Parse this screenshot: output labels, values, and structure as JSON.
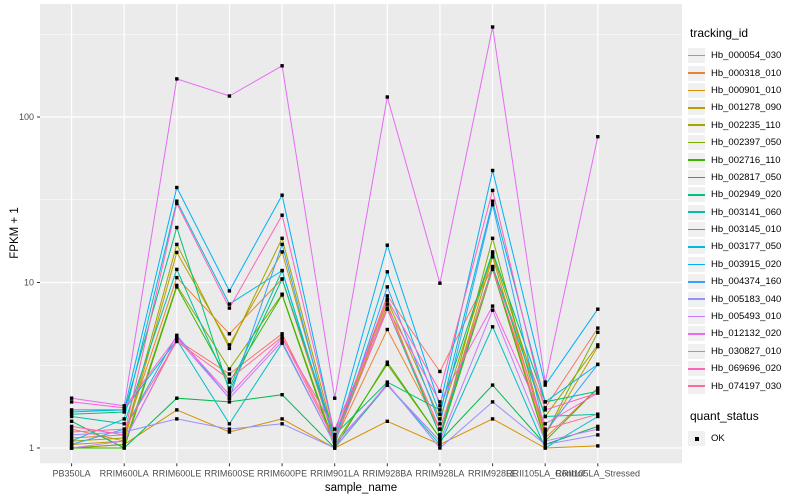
{
  "figure": {
    "panel_bg": "#EBEBEB",
    "grid_color": "#FFFFFF",
    "key_bg": "#F0F0F0",
    "marker_color": "#000000",
    "axis_text_color": "#4D4D4D",
    "tick_color": "#333333"
  },
  "legend": {
    "series_title": "tracking_id",
    "status_title": "quant_status",
    "status_items": [
      {
        "label": "OK",
        "marker": "black-square"
      }
    ]
  },
  "chart_data": {
    "type": "line",
    "title": "",
    "xlabel": "sample_name",
    "ylabel": "FPKM + 1",
    "y_scale": "log10",
    "y_ticks": [
      1,
      10,
      100
    ],
    "ylim": [
      0.81,
      480
    ],
    "grid": true,
    "legend_position": "right",
    "marker": "black-square",
    "categories": [
      "PB350LA",
      "RRIM600LA",
      "RRIM600LE",
      "RRIM600SE",
      "RRIM600PE",
      "RRIM901LA",
      "RRIM928BA",
      "RRIM928LA",
      "RRIM928LE",
      "RRII105LA_Control",
      "RRII105LA_Stressed"
    ],
    "series": [
      {
        "name": "Hb_000054_030",
        "color": "#F8766D",
        "values": [
          1.3,
          1.1,
          4.5,
          2.8,
          4.9,
          1.15,
          8.3,
          2.9,
          12.4,
          1.75,
          5.3
        ]
      },
      {
        "name": "Hb_000318_010",
        "color": "#EA8331",
        "values": [
          1.15,
          1.2,
          10.7,
          4.9,
          10.5,
          1.1,
          5.2,
          1.3,
          12.4,
          1.15,
          2.3
        ]
      },
      {
        "name": "Hb_000901_010",
        "color": "#D89000",
        "values": [
          1.0,
          1.05,
          1.7,
          1.25,
          1.5,
          1.0,
          1.45,
          1.05,
          1.5,
          1.0,
          1.03
        ]
      },
      {
        "name": "Hb_001278_090",
        "color": "#C09B00",
        "values": [
          1.05,
          1.1,
          15.2,
          4.2,
          15.3,
          1.1,
          7.4,
          1.2,
          14.3,
          1.2,
          4.1
        ]
      },
      {
        "name": "Hb_002235_110",
        "color": "#A3A500",
        "values": [
          1.1,
          1.15,
          17.0,
          4.0,
          18.5,
          1.15,
          7.8,
          1.5,
          14.9,
          1.55,
          4.2
        ]
      },
      {
        "name": "Hb_002397_050",
        "color": "#7CAE00",
        "values": [
          1.0,
          1.05,
          9.6,
          3.0,
          8.5,
          1.05,
          3.2,
          1.15,
          18.5,
          1.2,
          5.0
        ]
      },
      {
        "name": "Hb_002716_110",
        "color": "#39B600",
        "values": [
          1.0,
          1.0,
          9.4,
          2.5,
          8.4,
          1.0,
          3.3,
          1.15,
          12.0,
          1.1,
          2.3
        ]
      },
      {
        "name": "Hb_002817_050",
        "color": "#00BB4E",
        "values": [
          1.45,
          1.0,
          2.0,
          1.9,
          2.1,
          1.0,
          2.4,
          1.1,
          2.4,
          1.05,
          1.35
        ]
      },
      {
        "name": "Hb_002949_020",
        "color": "#00BF7D",
        "values": [
          1.6,
          1.65,
          21.5,
          2.2,
          10.5,
          1.2,
          2.5,
          1.7,
          15.3,
          1.9,
          2.2
        ]
      },
      {
        "name": "Hb_003141_060",
        "color": "#00C1A3",
        "values": [
          1.55,
          1.4,
          12.0,
          2.3,
          11.8,
          1.1,
          6.9,
          1.2,
          12.5,
          1.55,
          1.6
        ]
      },
      {
        "name": "Hb_003145_010",
        "color": "#00BFC4",
        "values": [
          1.65,
          1.7,
          4.5,
          1.4,
          4.3,
          1.05,
          2.4,
          1.05,
          5.4,
          1.0,
          1.55
        ]
      },
      {
        "name": "Hb_003177_050",
        "color": "#00BAE0",
        "values": [
          1.1,
          1.5,
          31.0,
          7.4,
          11.8,
          1.1,
          11.6,
          1.6,
          31.0,
          1.9,
          3.2
        ]
      },
      {
        "name": "Hb_003915_020",
        "color": "#00B0F6",
        "values": [
          1.7,
          1.7,
          37.5,
          8.9,
          33.7,
          1.2,
          16.8,
          1.8,
          47.5,
          2.4,
          6.9
        ]
      },
      {
        "name": "Hb_004374_160",
        "color": "#35A2FF",
        "values": [
          1.05,
          1.3,
          4.8,
          2.0,
          17.0,
          1.05,
          9.4,
          1.4,
          29.5,
          1.25,
          3.2
        ]
      },
      {
        "name": "Hb_005183_040",
        "color": "#9590FF",
        "values": [
          1.2,
          1.25,
          1.5,
          1.3,
          1.4,
          1.0,
          2.45,
          1.0,
          1.9,
          1.05,
          1.2
        ]
      },
      {
        "name": "Hb_005493_010",
        "color": "#C77CFF",
        "values": [
          1.0,
          1.1,
          4.6,
          2.0,
          4.4,
          1.05,
          2.4,
          1.1,
          6.8,
          1.1,
          1.3
        ]
      },
      {
        "name": "Hb_012132_020",
        "color": "#E76BF3",
        "values": [
          2.0,
          1.8,
          170,
          134,
          204,
          2.0,
          132,
          9.9,
          350,
          2.5,
          76
        ]
      },
      {
        "name": "Hb_030827_010",
        "color": "#FA62DB",
        "values": [
          1.9,
          1.75,
          4.7,
          2.1,
          4.6,
          1.3,
          7.0,
          1.9,
          7.2,
          1.4,
          2.15
        ]
      },
      {
        "name": "Hb_069696_020",
        "color": "#FF62BC",
        "values": [
          1.35,
          1.2,
          30.0,
          7.0,
          25.5,
          1.2,
          7.9,
          2.2,
          36.0,
          1.7,
          2.15
        ]
      },
      {
        "name": "Hb_074197_030",
        "color": "#FF6A98",
        "values": [
          1.25,
          1.3,
          4.4,
          2.6,
          4.7,
          1.1,
          6.9,
          1.3,
          12.1,
          1.3,
          1.6
        ]
      }
    ]
  }
}
